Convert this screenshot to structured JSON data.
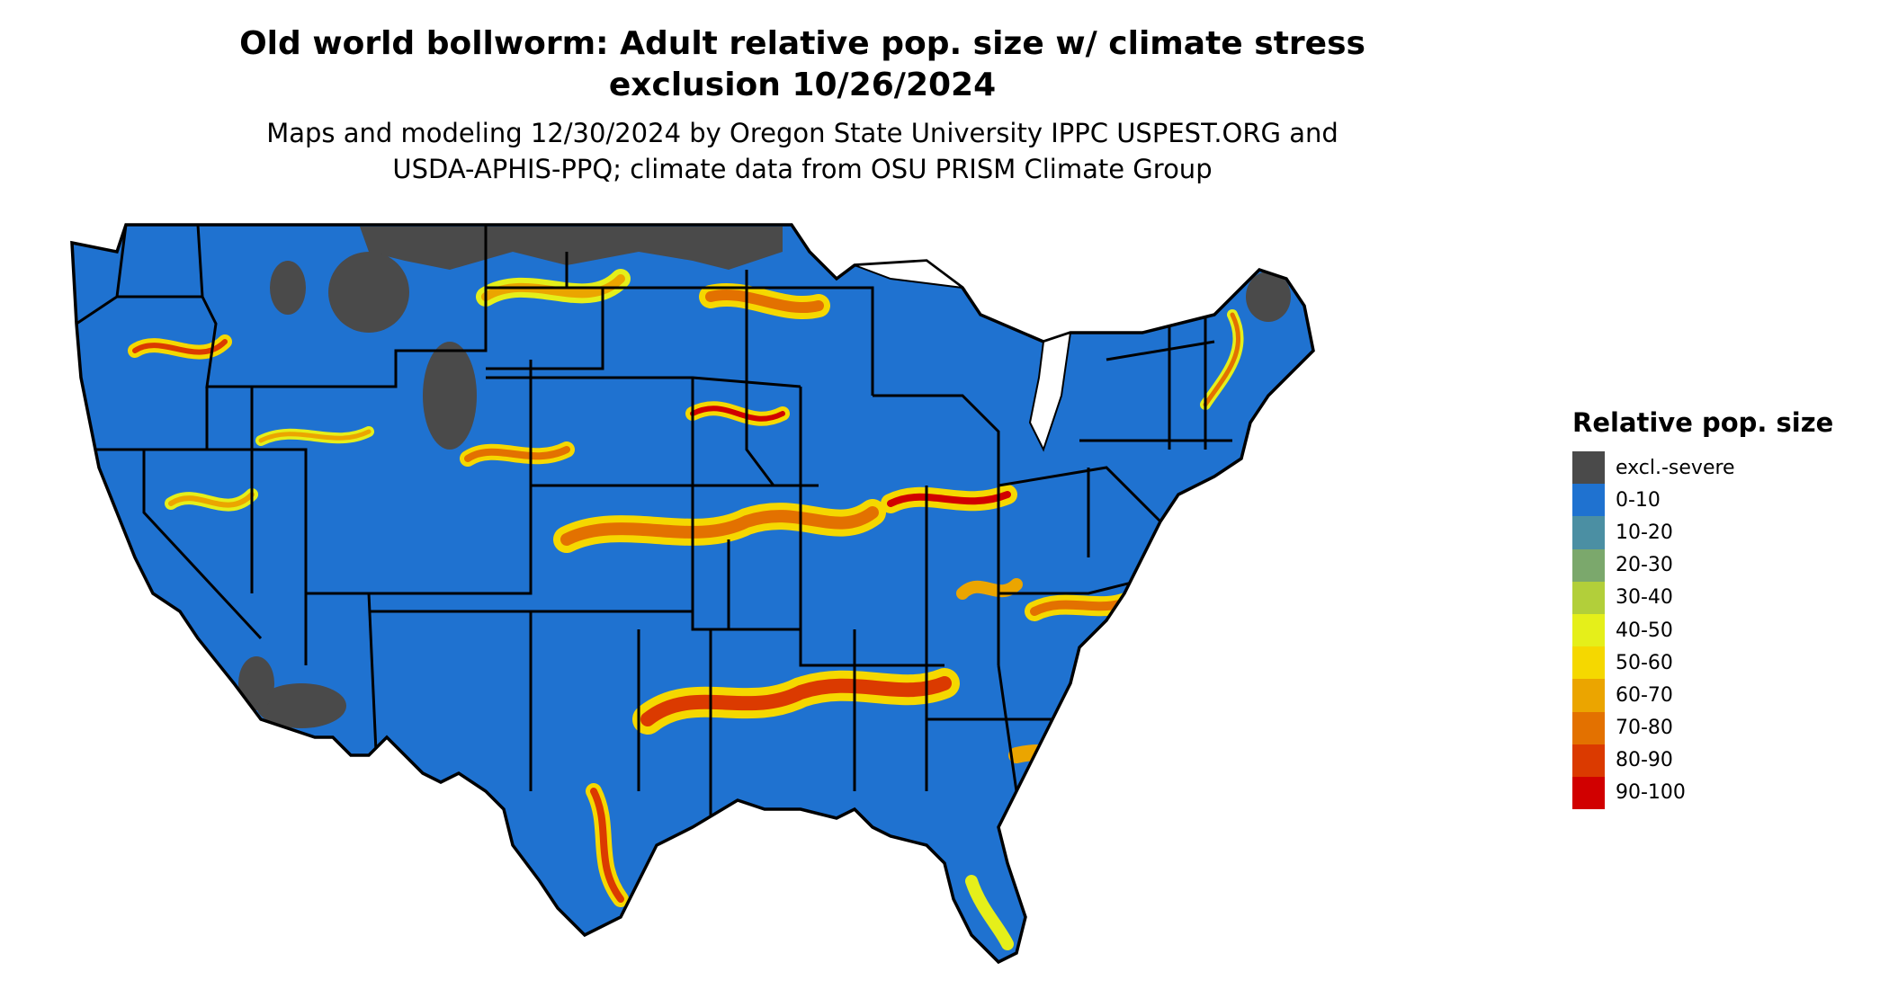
{
  "title_line1": "Old world bollworm: Adult relative pop. size w/ climate stress",
  "title_line2": "exclusion 10/26/2024",
  "subtitle_line1": "Maps and modeling 12/30/2024 by Oregon State University IPPC USPEST.ORG and",
  "subtitle_line2": "USDA-APHIS-PPQ; climate data from OSU PRISM Climate Group",
  "legend": {
    "title": "Relative pop. size",
    "items": [
      {
        "label": "excl.-severe",
        "color": "#4a4a4a"
      },
      {
        "label": "0-10",
        "color": "#1f72d0"
      },
      {
        "label": "10-20",
        "color": "#4b8fa3"
      },
      {
        "label": "20-30",
        "color": "#7ba86c"
      },
      {
        "label": "30-40",
        "color": "#b2cf3a"
      },
      {
        "label": "40-50",
        "color": "#e5ef1a"
      },
      {
        "label": "50-60",
        "color": "#f5d800"
      },
      {
        "label": "60-70",
        "color": "#eba500"
      },
      {
        "label": "70-80",
        "color": "#e37100"
      },
      {
        "label": "80-90",
        "color": "#db3a00"
      },
      {
        "label": "90-100",
        "color": "#d10000"
      }
    ]
  },
  "colors": {
    "ocean": "#ffffff",
    "state_border": "#000000",
    "land_base": "#1f72d0"
  }
}
